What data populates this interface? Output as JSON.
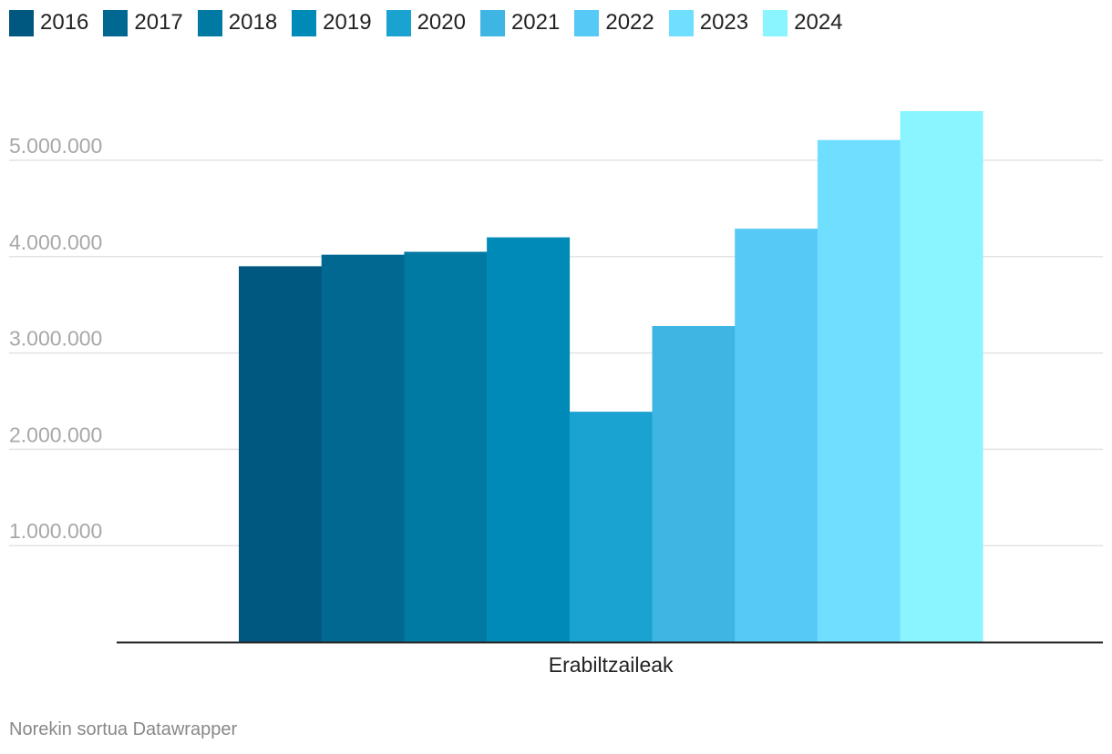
{
  "chart_data": {
    "type": "bar",
    "title": "",
    "xlabel": "",
    "ylabel": "",
    "categories": [
      "Erabiltzaileak"
    ],
    "series": [
      {
        "name": "2016",
        "color": "#00577f",
        "values": [
          3900000
        ]
      },
      {
        "name": "2017",
        "color": "#006891",
        "values": [
          4020000
        ]
      },
      {
        "name": "2018",
        "color": "#0079a3",
        "values": [
          4050000
        ]
      },
      {
        "name": "2019",
        "color": "#008ab8",
        "values": [
          4200000
        ]
      },
      {
        "name": "2020",
        "color": "#1aa2d0",
        "values": [
          2390000
        ]
      },
      {
        "name": "2021",
        "color": "#3fb5e3",
        "values": [
          3280000
        ]
      },
      {
        "name": "2022",
        "color": "#57c9f6",
        "values": [
          4290000
        ]
      },
      {
        "name": "2023",
        "color": "#6fdeff",
        "values": [
          5210000
        ]
      },
      {
        "name": "2024",
        "color": "#8af5ff",
        "values": [
          5510000
        ]
      }
    ],
    "ylim": [
      0,
      5600000
    ],
    "yticks": [
      {
        "value": 1000000,
        "label": "1.000.000"
      },
      {
        "value": 2000000,
        "label": "2.000.000"
      },
      {
        "value": 3000000,
        "label": "3.000.000"
      },
      {
        "value": 4000000,
        "label": "4.000.000"
      },
      {
        "value": 5000000,
        "label": "5.000.000"
      }
    ],
    "grid": true,
    "legend_position": "top-left"
  },
  "footer": {
    "credit": "Norekin sortua Datawrapper"
  }
}
